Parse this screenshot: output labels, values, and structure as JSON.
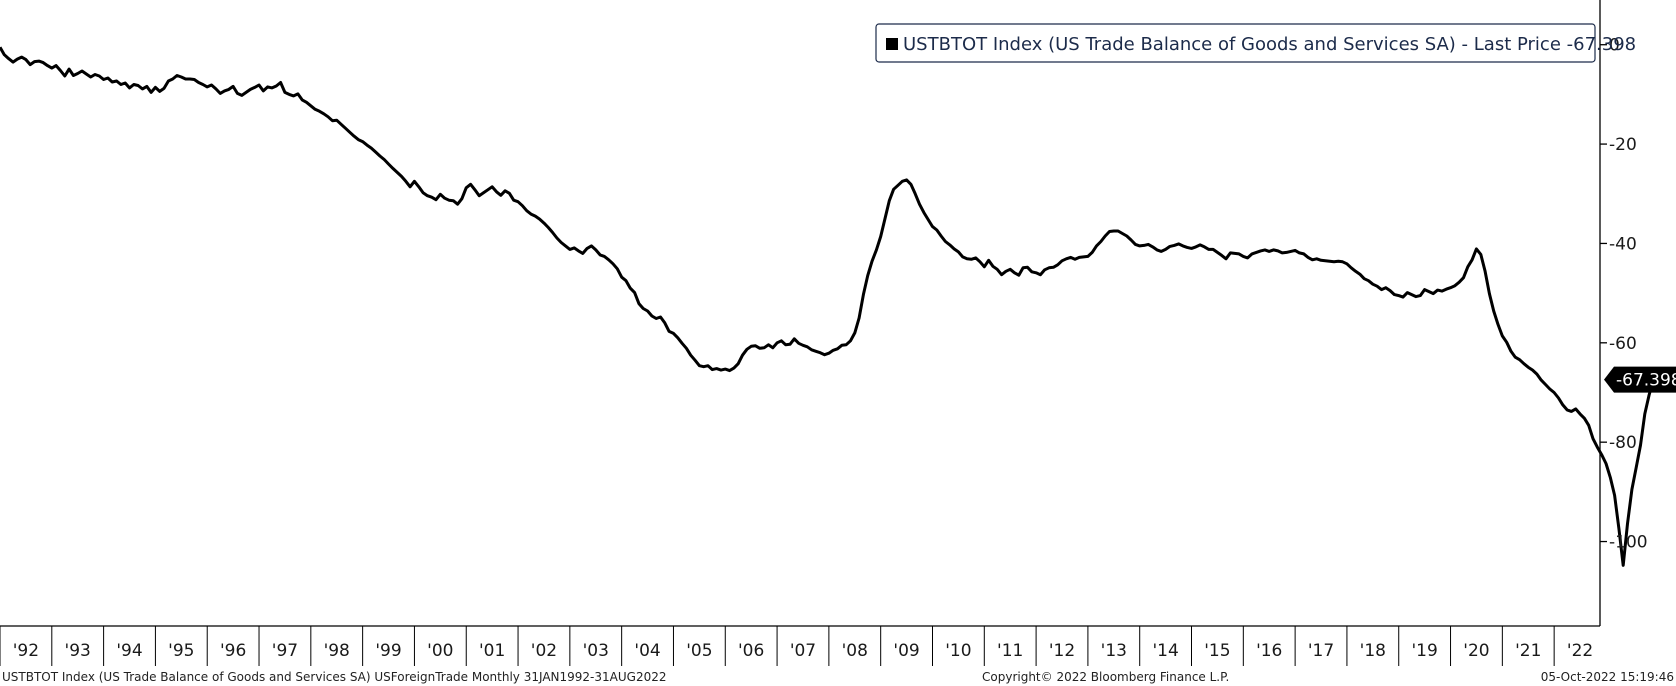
{
  "legend_label": "USTBTOT Index (US Trade Balance of Goods and Services SA) - Last Price -67.398",
  "last_price_label": "-67.398",
  "footer": {
    "left": "USTBTOT Index (US Trade Balance of Goods and Services SA) USForeignTrade  Monthly 31JAN1992-31AUG2022",
    "center": "Copyright© 2022 Bloomberg Finance L.P.",
    "right": "05-Oct-2022 15:19:46"
  },
  "colors": {
    "line": "#000000",
    "axis": "#000000",
    "legend_text": "#1c2b4a"
  },
  "chart_data": {
    "type": "line",
    "title": "USTBTOT Index (US Trade Balance of Goods and Services SA)",
    "xlabel": "",
    "ylabel": "",
    "x_tick_labels": [
      "'92",
      "'93",
      "'94",
      "'95",
      "'96",
      "'97",
      "'98",
      "'99",
      "'00",
      "'01",
      "'02",
      "'03",
      "'04",
      "'05",
      "'06",
      "'07",
      "'08",
      "'09",
      "'10",
      "'11",
      "'12",
      "'13",
      "'14",
      "'15",
      "'16",
      "'17",
      "'18",
      "'19",
      "'20",
      "'21",
      "'22"
    ],
    "y_ticks": [
      0,
      -20,
      -40,
      -60,
      -80,
      -100
    ],
    "ylim": [
      -117,
      9
    ],
    "xlim": [
      1992.0,
      2022.75
    ],
    "grid": false,
    "legend_position": "top-right",
    "y_axis_side": "right",
    "last_value": -67.398,
    "series": [
      {
        "name": "USTBTOT Index (US Trade Balance of Goods and Services SA)",
        "x_start": "1992-01",
        "frequency": "monthly",
        "values": [
          -0.5,
          -2,
          -2.8,
          -3.5,
          -2.9,
          -2.5,
          -3,
          -4,
          -3.4,
          -3.3,
          -3.6,
          -4.2,
          -4.7,
          -4.2,
          -5.2,
          -6.3,
          -4.9,
          -6.2,
          -5.8,
          -5.3,
          -5.9,
          -6.5,
          -6,
          -6.3,
          -7,
          -6.7,
          -7.5,
          -7.3,
          -8,
          -7.7,
          -8.7,
          -8,
          -8.2,
          -8.9,
          -8.4,
          -9.6,
          -8.6,
          -9.4,
          -8.8,
          -7.3,
          -6.9,
          -6.2,
          -6.5,
          -6.9,
          -6.9,
          -7,
          -7.6,
          -8,
          -8.5,
          -8.1,
          -8.9,
          -9.8,
          -9.3,
          -9,
          -8.4,
          -9.8,
          -10.2,
          -9.6,
          -9,
          -8.6,
          -8.1,
          -9.3,
          -8.5,
          -8.7,
          -8.3,
          -7.6,
          -9.6,
          -10,
          -10.3,
          -9.9,
          -11.1,
          -11.6,
          -12.3,
          -13,
          -13.4,
          -13.9,
          -14.5,
          -15.3,
          -15.2,
          -16,
          -16.8,
          -17.6,
          -18.4,
          -19.1,
          -19.5,
          -20.2,
          -20.8,
          -21.6,
          -22.4,
          -23.1,
          -24,
          -24.9,
          -25.7,
          -26.5,
          -27.5,
          -28.6,
          -27.5,
          -28.6,
          -29.8,
          -30.4,
          -30.7,
          -31.2,
          -30.1,
          -30.9,
          -31.3,
          -31.4,
          -32.1,
          -31,
          -28.8,
          -28.1,
          -29.2,
          -30.4,
          -29.8,
          -29.2,
          -28.6,
          -29.6,
          -30.3,
          -29.4,
          -29.9,
          -31.3,
          -31.6,
          -32.4,
          -33.4,
          -34.1,
          -34.5,
          -35.1,
          -35.9,
          -36.8,
          -37.8,
          -38.9,
          -39.8,
          -40.5,
          -41.2,
          -40.9,
          -41.5,
          -42,
          -41,
          -40.5,
          -41.3,
          -42.3,
          -42.6,
          -43.3,
          -44.1,
          -45.1,
          -46.8,
          -47.5,
          -49,
          -49.9,
          -52.1,
          -53.1,
          -53.6,
          -54.6,
          -55.1,
          -54.8,
          -56,
          -57.7,
          -58.1,
          -59,
          -60.1,
          -61.1,
          -62.5,
          -63.5,
          -64.6,
          -64.8,
          -64.6,
          -65.4,
          -65.2,
          -65.5,
          -65.3,
          -65.6,
          -65.1,
          -64.2,
          -62.5,
          -61.3,
          -60.7,
          -60.6,
          -61.1,
          -61,
          -60.4,
          -61,
          -60,
          -59.6,
          -60.4,
          -60.3,
          -59.2,
          -60.1,
          -60.5,
          -60.8,
          -61.4,
          -61.7,
          -62,
          -62.4,
          -62.1,
          -61.5,
          -61.2,
          -60.5,
          -60.4,
          -59.6,
          -58,
          -55,
          -50.3,
          -46.5,
          -43.6,
          -41.3,
          -38.6,
          -35,
          -31.4,
          -29.1,
          -28.3,
          -27.5,
          -27.2,
          -28.1,
          -30,
          -32.1,
          -33.8,
          -35.2,
          -36.6,
          -37.3,
          -38.5,
          -39.6,
          -40.3,
          -41.1,
          -41.7,
          -42.7,
          -43.1,
          -43.2,
          -42.9,
          -43.7,
          -44.7,
          -43.4,
          -44.6,
          -45.2,
          -46.3,
          -45.6,
          -45.2,
          -45.9,
          -46.4,
          -44.9,
          -44.8,
          -45.7,
          -45.9,
          -46.3,
          -45.3,
          -44.9,
          -44.8,
          -44.3,
          -43.5,
          -43.1,
          -42.8,
          -43.2,
          -42.8,
          -42.7,
          -42.6,
          -41.8,
          -40.5,
          -39.6,
          -38.5,
          -37.6,
          -37.5,
          -37.5,
          -38,
          -38.5,
          -39.3,
          -40.2,
          -40.5,
          -40.4,
          -40.2,
          -40.7,
          -41.3,
          -41.6,
          -41.2,
          -40.6,
          -40.4,
          -40.1,
          -40.5,
          -40.8,
          -41,
          -40.7,
          -40.3,
          -40.7,
          -41.2,
          -41.2,
          -41.8,
          -42.4,
          -43.1,
          -41.9,
          -42,
          -42.1,
          -42.6,
          -42.9,
          -42.1,
          -41.8,
          -41.5,
          -41.3,
          -41.6,
          -41.3,
          -41.5,
          -41.9,
          -41.8,
          -41.6,
          -41.4,
          -41.9,
          -42.1,
          -42.8,
          -43.3,
          -43.1,
          -43.4,
          -43.5,
          -43.6,
          -43.7,
          -43.6,
          -43.7,
          -44.1,
          -44.9,
          -45.6,
          -46.2,
          -47.1,
          -47.5,
          -48.2,
          -48.6,
          -49.3,
          -48.9,
          -49.5,
          -50.3,
          -50.5,
          -50.8,
          -49.9,
          -50.3,
          -50.7,
          -50.5,
          -49.3,
          -49.7,
          -50.1,
          -49.4,
          -49.6,
          -49.2,
          -48.9,
          -48.5,
          -47.8,
          -46.9,
          -44.7,
          -43.3,
          -41.1,
          -42.2,
          -45.6,
          -50.1,
          -53.6,
          -56.3,
          -58.6,
          -59.9,
          -61.7,
          -62.9,
          -63.4,
          -64.2,
          -64.9,
          -65.5,
          -66.3,
          -67.5,
          -68.4,
          -69.3,
          -70,
          -71.1,
          -72.5,
          -73.5,
          -73.8,
          -73.3,
          -74.3,
          -75.2,
          -76.6,
          -79.3,
          -81,
          -82.5,
          -84.3,
          -87.1,
          -90.7,
          -97.4,
          -104.8,
          -96.4,
          -89.5,
          -85.1,
          -80.6,
          -74.3,
          -70.5,
          -67.398
        ]
      }
    ]
  }
}
